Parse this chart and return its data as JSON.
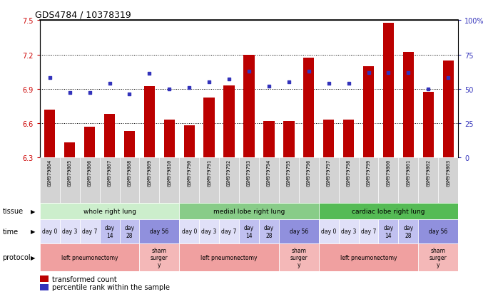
{
  "title": "GDS4784 / 10378319",
  "samples": [
    "GSM979804",
    "GSM979805",
    "GSM979806",
    "GSM979807",
    "GSM979808",
    "GSM979809",
    "GSM979810",
    "GSM979790",
    "GSM979791",
    "GSM979792",
    "GSM979793",
    "GSM979794",
    "GSM979795",
    "GSM979796",
    "GSM979797",
    "GSM979798",
    "GSM979799",
    "GSM979800",
    "GSM979801",
    "GSM979802",
    "GSM979803"
  ],
  "bar_values": [
    6.72,
    6.43,
    6.57,
    6.68,
    6.53,
    6.92,
    6.63,
    6.58,
    6.82,
    6.93,
    7.2,
    6.62,
    6.62,
    7.17,
    6.63,
    6.63,
    7.1,
    7.48,
    7.22,
    6.87,
    7.15
  ],
  "dot_values": [
    58,
    47,
    47,
    54,
    46,
    61,
    50,
    51,
    55,
    57,
    63,
    52,
    55,
    63,
    54,
    54,
    62,
    62,
    62,
    50,
    58
  ],
  "ylim_left": [
    6.3,
    7.5
  ],
  "ylim_right": [
    0,
    100
  ],
  "yticks_left": [
    6.3,
    6.6,
    6.9,
    7.2,
    7.5
  ],
  "yticks_right": [
    0,
    25,
    50,
    75,
    100
  ],
  "bar_color": "#bb0000",
  "dot_color": "#3333bb",
  "tissue_groups": [
    {
      "label": "whole right lung",
      "start": 0,
      "end": 7,
      "color": "#cceecc"
    },
    {
      "label": "medial lobe right lung",
      "start": 7,
      "end": 14,
      "color": "#88cc88"
    },
    {
      "label": "cardiac lobe right lung",
      "start": 14,
      "end": 21,
      "color": "#66bb66"
    }
  ],
  "time_per_sample": [
    "day 0",
    "day 3",
    "day 7",
    "day\n14",
    "day\n28",
    "day 56",
    "day 56",
    "day 0",
    "day 3",
    "day 7",
    "day\n14",
    "day\n28",
    "day 56",
    "day 56",
    "day 0",
    "day 3",
    "day 7",
    "day\n14",
    "day\n28",
    "day 56",
    "day 56"
  ],
  "time_colors_per_sample": [
    "#e0e0f8",
    "#e0e0f8",
    "#e0e0f8",
    "#c0c0f0",
    "#c0c0f0",
    "#9090dd",
    "#9090dd",
    "#e0e0f8",
    "#e0e0f8",
    "#e0e0f8",
    "#c0c0f0",
    "#c0c0f0",
    "#9090dd",
    "#9090dd",
    "#e0e0f8",
    "#e0e0f8",
    "#e0e0f8",
    "#c0c0f0",
    "#c0c0f0",
    "#9090dd",
    "#9090dd"
  ],
  "time_merged": [
    {
      "label": "day 0",
      "start": 0,
      "end": 1
    },
    {
      "label": "day 3",
      "start": 1,
      "end": 2
    },
    {
      "label": "day 7",
      "start": 2,
      "end": 3
    },
    {
      "label": "day\n14",
      "start": 3,
      "end": 4
    },
    {
      "label": "day\n28",
      "start": 4,
      "end": 5
    },
    {
      "label": "day 56",
      "start": 5,
      "end": 7
    },
    {
      "label": "day 0",
      "start": 7,
      "end": 8
    },
    {
      "label": "day 3",
      "start": 8,
      "end": 9
    },
    {
      "label": "day 7",
      "start": 9,
      "end": 10
    },
    {
      "label": "day\n14",
      "start": 10,
      "end": 11
    },
    {
      "label": "day\n28",
      "start": 11,
      "end": 12
    },
    {
      "label": "day 56",
      "start": 12,
      "end": 14
    },
    {
      "label": "day 0",
      "start": 14,
      "end": 15
    },
    {
      "label": "day 3",
      "start": 15,
      "end": 16
    },
    {
      "label": "day 7",
      "start": 16,
      "end": 17
    },
    {
      "label": "day\n14",
      "start": 17,
      "end": 18
    },
    {
      "label": "day\n28",
      "start": 18,
      "end": 19
    },
    {
      "label": "day 56",
      "start": 19,
      "end": 21
    }
  ],
  "time_merged_colors": [
    "#e0e0f8",
    "#e0e0f8",
    "#e0e0f8",
    "#c0c0f0",
    "#c0c0f0",
    "#9090dd",
    "#e0e0f8",
    "#e0e0f8",
    "#e0e0f8",
    "#c0c0f0",
    "#c0c0f0",
    "#9090dd",
    "#e0e0f8",
    "#e0e0f8",
    "#e0e0f8",
    "#c0c0f0",
    "#c0c0f0",
    "#9090dd"
  ],
  "protocol_groups": [
    {
      "label": "left pneumonectomy",
      "start": 0,
      "end": 5,
      "color": "#f0a0a0"
    },
    {
      "label": "sham\nsurger\ny",
      "start": 5,
      "end": 7,
      "color": "#f4b8b8"
    },
    {
      "label": "left pneumonectomy",
      "start": 7,
      "end": 12,
      "color": "#f0a0a0"
    },
    {
      "label": "sham\nsurger\ny",
      "start": 12,
      "end": 14,
      "color": "#f4b8b8"
    },
    {
      "label": "left pneumonectomy",
      "start": 14,
      "end": 19,
      "color": "#f0a0a0"
    },
    {
      "label": "sham\nsurger\ny",
      "start": 19,
      "end": 21,
      "color": "#f4b8b8"
    }
  ],
  "legend_bar_label": "transformed count",
  "legend_dot_label": "percentile rank within the sample",
  "tick_label_color_left": "#cc0000",
  "tick_label_color_right": "#3333bb",
  "sample_bg_color": "#d3d3d3"
}
